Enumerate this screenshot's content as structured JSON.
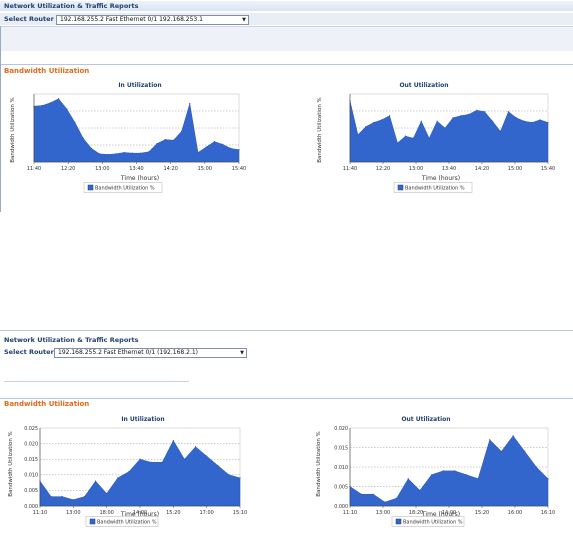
{
  "panels": [
    {
      "header": {
        "title": "Network Utilization & Traffic Reports"
      },
      "router": {
        "label": "Select Router",
        "selected": "192.168.255.2 Fast Ethernet 0/1 192.168.253.1"
      },
      "section_title": "Bandwidth Utilization",
      "charts": [
        {
          "title": "In Utilization",
          "ylabel": "Bandwidth Utilization %",
          "xlabel": "Time (hours)",
          "legend": "Bandwidth Utilization %",
          "color": "#3366cc",
          "tick_labels": [
            "11:40",
            "12:20",
            "13:00",
            "13:40",
            "14:20",
            "15:00",
            "15:40"
          ]
        },
        {
          "title": "Out Utilization",
          "ylabel": "Bandwidth Utilization %",
          "xlabel": "Time (hours)",
          "legend": "Bandwidth Utilization %",
          "color": "#3366cc",
          "tick_labels": [
            "11:40",
            "12:20",
            "13:00",
            "13:40",
            "14:20",
            "15:00",
            "15:40"
          ]
        }
      ]
    },
    {
      "header": {
        "title": "Network Utilization & Traffic Reports"
      },
      "router": {
        "label": "Select Router",
        "selected": "192.168.255.2 Fast Ethernet 0/1    (192.168.2.1)"
      },
      "section_title": "Bandwidth Utilization",
      "charts": [
        {
          "title": "In Utilization",
          "ylabel": "Bandwidth Utilization %",
          "xlabel": "Time (hours)",
          "legend": "Bandwidth Utilization %",
          "color": "#3366cc",
          "y_tick_labels": [
            "0.025",
            "0.020",
            "0.015",
            "0.010",
            "0.005",
            "0.000"
          ],
          "tick_labels": [
            "11:10",
            "13:00",
            "18:00",
            "14:00",
            "15:20",
            "17:00",
            "15:10"
          ]
        },
        {
          "title": "Out Utilization",
          "ylabel": "Bandwidth Utilization %",
          "xlabel": "Time (hours)",
          "legend": "Bandwidth Utilization %",
          "color": "#3366cc",
          "y_tick_labels": [
            "0.020",
            "0.015",
            "0.010",
            "0.005",
            "0.000"
          ],
          "tick_labels": [
            "11:10",
            "13:00",
            "18:20",
            "14:00",
            "15:20",
            "16:00",
            "16:10"
          ]
        }
      ]
    }
  ],
  "chart_data": [
    {
      "type": "area",
      "title": "In Utilization",
      "xlabel": "Time (hours)",
      "ylabel": "Bandwidth Utilization %",
      "x": [
        "11:40",
        "11:50",
        "12:00",
        "12:10",
        "12:20",
        "12:30",
        "12:40",
        "12:50",
        "13:00",
        "13:10",
        "13:20",
        "13:30",
        "13:40",
        "13:50",
        "14:00",
        "14:10",
        "14:20",
        "14:30",
        "14:40",
        "14:50",
        "15:00",
        "15:10",
        "15:20",
        "15:30",
        "15:40",
        "15:45"
      ],
      "series": [
        {
          "name": "Bandwidth Utilization %",
          "values": [
            82,
            83,
            87,
            93,
            78,
            58,
            35,
            20,
            12,
            11,
            12,
            14,
            13,
            13,
            15,
            27,
            33,
            32,
            45,
            86,
            14,
            22,
            30,
            26,
            20,
            18
          ]
        }
      ],
      "ylim": [
        0,
        100
      ]
    },
    {
      "type": "area",
      "title": "Out Utilization",
      "xlabel": "Time (hours)",
      "ylabel": "Bandwidth Utilization %",
      "x": [
        "11:40",
        "11:50",
        "12:00",
        "12:10",
        "12:20",
        "12:30",
        "12:40",
        "12:50",
        "13:00",
        "13:10",
        "13:20",
        "13:30",
        "13:40",
        "13:50",
        "14:00",
        "14:10",
        "14:20",
        "14:30",
        "14:40",
        "14:50",
        "15:00",
        "15:10",
        "15:20",
        "15:30",
        "15:40",
        "15:45"
      ],
      "series": [
        {
          "name": "Bandwidth Utilization %",
          "values": [
            90,
            40,
            52,
            58,
            62,
            68,
            28,
            38,
            35,
            60,
            35,
            60,
            50,
            65,
            68,
            70,
            76,
            74,
            60,
            45,
            74,
            65,
            60,
            58,
            62,
            58
          ]
        }
      ],
      "ylim": [
        0,
        100
      ]
    },
    {
      "type": "area",
      "title": "In Utilization",
      "xlabel": "Time (hours)",
      "ylabel": "Bandwidth Utilization %",
      "x": [
        "11:10",
        "11:30",
        "11:50",
        "12:10",
        "12:30",
        "12:50",
        "13:10",
        "13:30",
        "13:50",
        "14:10",
        "14:30",
        "14:50",
        "15:10",
        "15:30",
        "15:50",
        "16:10",
        "16:30",
        "16:50",
        "17:10"
      ],
      "series": [
        {
          "name": "Bandwidth Utilization %",
          "values": [
            0.008,
            0.003,
            0.003,
            0.002,
            0.003,
            0.008,
            0.004,
            0.009,
            0.011,
            0.015,
            0.014,
            0.014,
            0.021,
            0.015,
            0.019,
            0.016,
            0.013,
            0.01,
            0.009
          ]
        }
      ],
      "ylim": [
        0,
        0.025
      ]
    },
    {
      "type": "area",
      "title": "Out Utilization",
      "xlabel": "Time (hours)",
      "ylabel": "Bandwidth Utilization %",
      "x": [
        "11:10",
        "11:30",
        "11:50",
        "12:10",
        "12:30",
        "12:50",
        "13:10",
        "13:30",
        "13:50",
        "14:10",
        "14:30",
        "14:50",
        "15:10",
        "15:30",
        "15:50",
        "16:10",
        "16:30",
        "16:50"
      ],
      "series": [
        {
          "name": "Bandwidth Utilization %",
          "values": [
            0.005,
            0.003,
            0.003,
            0.001,
            0.002,
            0.007,
            0.004,
            0.008,
            0.009,
            0.009,
            0.008,
            0.007,
            0.017,
            0.014,
            0.018,
            0.014,
            0.01,
            0.007
          ]
        }
      ],
      "ylim": [
        0,
        0.02
      ]
    }
  ]
}
